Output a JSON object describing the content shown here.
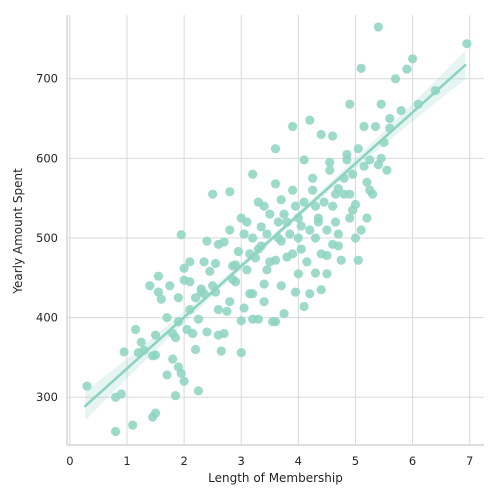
{
  "chart_data": {
    "type": "scatter",
    "title": "",
    "xlabel": "Length of Membership",
    "ylabel": "Yearly Amount Spent",
    "xlim": [
      -0.05,
      7.25
    ],
    "ylim": [
      240,
      780
    ],
    "xticks": [
      0,
      1,
      2,
      3,
      4,
      5,
      6,
      7
    ],
    "yticks": [
      300,
      400,
      500,
      600,
      700
    ],
    "grid": true,
    "color": "#8dd3c0",
    "regression": {
      "x": [
        0.27,
        6.92
      ],
      "y": [
        289,
        717
      ],
      "ci_band": true
    },
    "points": [
      [
        0.3,
        314
      ],
      [
        0.8,
        257
      ],
      [
        0.8,
        300
      ],
      [
        0.9,
        304
      ],
      [
        0.95,
        357
      ],
      [
        1.1,
        265
      ],
      [
        1.15,
        385
      ],
      [
        1.2,
        356
      ],
      [
        1.25,
        369
      ],
      [
        1.3,
        359
      ],
      [
        1.4,
        440
      ],
      [
        1.45,
        352
      ],
      [
        1.5,
        280
      ],
      [
        1.45,
        275
      ],
      [
        1.5,
        378
      ],
      [
        1.5,
        353
      ],
      [
        1.55,
        432
      ],
      [
        1.55,
        452
      ],
      [
        1.6,
        423
      ],
      [
        1.7,
        400
      ],
      [
        1.7,
        328
      ],
      [
        1.75,
        440
      ],
      [
        1.8,
        380
      ],
      [
        1.8,
        348
      ],
      [
        1.85,
        375
      ],
      [
        1.85,
        302
      ],
      [
        1.9,
        338
      ],
      [
        1.9,
        425
      ],
      [
        1.95,
        330
      ],
      [
        1.95,
        504
      ],
      [
        2.0,
        447
      ],
      [
        2.0,
        462
      ],
      [
        2.0,
        320
      ],
      [
        2.05,
        385
      ],
      [
        2.1,
        410
      ],
      [
        2.1,
        445
      ],
      [
        2.15,
        380
      ],
      [
        2.2,
        425
      ],
      [
        2.25,
        308
      ],
      [
        2.25,
        398
      ],
      [
        2.3,
        436
      ],
      [
        2.35,
        470
      ],
      [
        2.4,
        382
      ],
      [
        2.45,
        458
      ],
      [
        2.5,
        440
      ],
      [
        2.55,
        432
      ],
      [
        2.6,
        492
      ],
      [
        2.65,
        358
      ],
      [
        2.7,
        380
      ],
      [
        2.75,
        408
      ],
      [
        2.8,
        420
      ],
      [
        2.85,
        448
      ],
      [
        2.9,
        466
      ],
      [
        2.95,
        483
      ],
      [
        3.0,
        396
      ],
      [
        3.05,
        412
      ],
      [
        3.1,
        460
      ],
      [
        3.15,
        430
      ],
      [
        3.2,
        500
      ],
      [
        3.25,
        475
      ],
      [
        3.3,
        486
      ],
      [
        3.35,
        514
      ],
      [
        3.4,
        442
      ],
      [
        3.45,
        460
      ],
      [
        3.5,
        530
      ],
      [
        3.55,
        395
      ],
      [
        3.6,
        472
      ],
      [
        3.65,
        520
      ],
      [
        3.7,
        548
      ],
      [
        3.75,
        405
      ],
      [
        3.8,
        476
      ],
      [
        3.85,
        505
      ],
      [
        3.9,
        560
      ],
      [
        3.95,
        432
      ],
      [
        4.0,
        525
      ],
      [
        4.05,
        486
      ],
      [
        4.1,
        545
      ],
      [
        4.15,
        470
      ],
      [
        4.2,
        510
      ],
      [
        4.25,
        575
      ],
      [
        4.3,
        456
      ],
      [
        4.35,
        520
      ],
      [
        4.4,
        480
      ],
      [
        4.45,
        545
      ],
      [
        4.5,
        510
      ],
      [
        4.55,
        595
      ],
      [
        4.6,
        492
      ],
      [
        4.65,
        520
      ],
      [
        4.7,
        562
      ],
      [
        4.75,
        472
      ],
      [
        4.8,
        555
      ],
      [
        4.85,
        605
      ],
      [
        4.9,
        525
      ],
      [
        4.95,
        580
      ],
      [
        5.0,
        542
      ],
      [
        5.05,
        612
      ],
      [
        5.1,
        510
      ],
      [
        5.15,
        640
      ],
      [
        5.2,
        570
      ],
      [
        5.25,
        598
      ],
      [
        5.3,
        555
      ],
      [
        5.35,
        640
      ],
      [
        5.4,
        592
      ],
      [
        5.45,
        668
      ],
      [
        5.5,
        620
      ],
      [
        5.55,
        585
      ],
      [
        5.6,
        650
      ],
      [
        5.7,
        700
      ],
      [
        5.8,
        660
      ],
      [
        5.9,
        712
      ],
      [
        6.0,
        725
      ],
      [
        6.1,
        668
      ],
      [
        6.4,
        685
      ],
      [
        6.95,
        744
      ],
      [
        5.4,
        765
      ],
      [
        5.1,
        713
      ],
      [
        4.9,
        668
      ],
      [
        5.6,
        638
      ],
      [
        4.2,
        648
      ],
      [
        4.4,
        630
      ],
      [
        3.9,
        640
      ],
      [
        3.6,
        612
      ],
      [
        3.2,
        580
      ],
      [
        2.8,
        558
      ],
      [
        2.5,
        555
      ],
      [
        3.0,
        525
      ],
      [
        2.7,
        495
      ],
      [
        3.3,
        545
      ],
      [
        3.6,
        568
      ],
      [
        4.1,
        598
      ],
      [
        4.6,
        628
      ],
      [
        4.8,
        575
      ],
      [
        5.0,
        500
      ],
      [
        4.5,
        478
      ],
      [
        4.7,
        505
      ],
      [
        4.3,
        540
      ],
      [
        4.0,
        455
      ],
      [
        3.8,
        520
      ],
      [
        3.5,
        470
      ],
      [
        3.2,
        430
      ],
      [
        2.9,
        445
      ],
      [
        2.6,
        410
      ],
      [
        2.3,
        432
      ],
      [
        2.1,
        470
      ],
      [
        1.9,
        395
      ],
      [
        2.4,
        496
      ],
      [
        2.8,
        510
      ],
      [
        3.1,
        520
      ],
      [
        3.4,
        540
      ],
      [
        3.7,
        496
      ],
      [
        4.0,
        500
      ],
      [
        4.3,
        500
      ],
      [
        4.6,
        540
      ],
      [
        4.9,
        555
      ],
      [
        5.2,
        525
      ],
      [
        3.3,
        398
      ],
      [
        3.6,
        395
      ],
      [
        3.9,
        480
      ],
      [
        4.2,
        430
      ],
      [
        4.5,
        455
      ],
      [
        2.2,
        360
      ],
      [
        2.6,
        378
      ],
      [
        3.0,
        356
      ],
      [
        3.2,
        398
      ],
      [
        3.4,
        420
      ],
      [
        3.7,
        440
      ],
      [
        4.1,
        414
      ],
      [
        4.4,
        435
      ],
      [
        4.7,
        490
      ],
      [
        5.05,
        472
      ],
      [
        3.05,
        505
      ],
      [
        3.35,
        490
      ],
      [
        3.65,
        500
      ],
      [
        3.95,
        540
      ],
      [
        4.25,
        560
      ],
      [
        4.55,
        585
      ],
      [
        4.85,
        598
      ],
      [
        5.15,
        590
      ],
      [
        5.45,
        600
      ],
      [
        2.35,
        430
      ],
      [
        2.55,
        468
      ],
      [
        2.85,
        465
      ],
      [
        3.15,
        480
      ],
      [
        3.45,
        505
      ],
      [
        3.75,
        530
      ],
      [
        4.05,
        515
      ],
      [
        4.35,
        525
      ],
      [
        4.65,
        555
      ],
      [
        4.95,
        535
      ],
      [
        5.25,
        560
      ]
    ]
  }
}
